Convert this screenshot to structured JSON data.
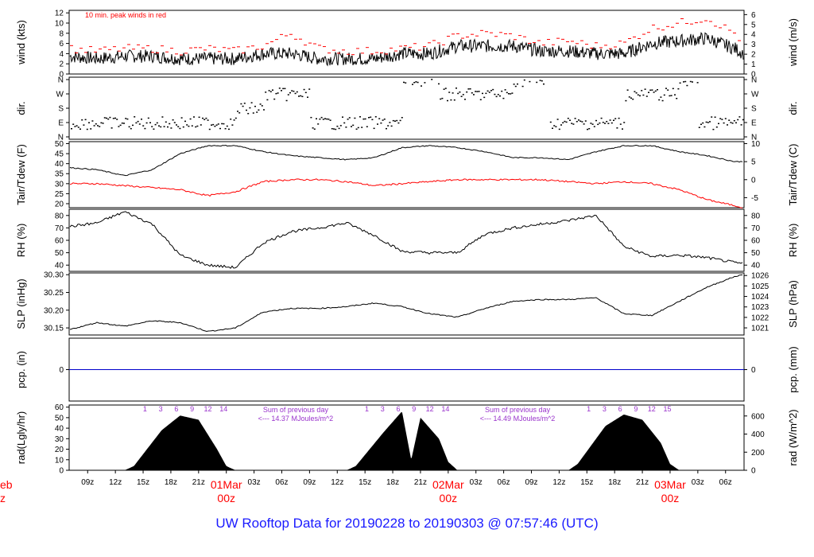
{
  "title": "UW Rooftop Data for 20190228  to  20190303 @ 07:57:46  (UTC)",
  "time_axis": {
    "hours": [
      "09z",
      "12z",
      "15z",
      "18z",
      "21z",
      "03z",
      "06z",
      "09z",
      "12z",
      "15z",
      "18z",
      "21z",
      "03z",
      "06z",
      "09z",
      "12z",
      "15z",
      "18z",
      "21z",
      "03z",
      "06z"
    ],
    "date_labels": [
      {
        "date": "01Mar",
        "hour": "00z"
      },
      {
        "date": "02Mar",
        "hour": "00z"
      },
      {
        "date": "03Mar",
        "hour": "00z"
      }
    ],
    "partial_left": {
      "date": "eb",
      "hour": "z"
    }
  },
  "panels": [
    {
      "id": "wind",
      "ylabel_left": "wind (kts)",
      "ylabel_right": "wind (m/s)",
      "left_ticks": [
        "0",
        "2",
        "4",
        "6",
        "8",
        "10",
        "12"
      ],
      "right_ticks": [
        "0",
        "1",
        "2",
        "3",
        "4",
        "5",
        "6"
      ],
      "note": "10 min. peak winds in red"
    },
    {
      "id": "dir",
      "ylabel_left": "dir.",
      "ylabel_right": "dir.",
      "left_ticks": [
        "N",
        "E",
        "S",
        "W",
        "N"
      ],
      "right_ticks": [
        "N",
        "E",
        "S",
        "W",
        "N"
      ]
    },
    {
      "id": "temp",
      "ylabel_left": "Tair/Tdew (F)",
      "ylabel_right": "Tair/Tdew (C)",
      "left_ticks": [
        "20",
        "25",
        "30",
        "35",
        "40",
        "45",
        "50"
      ],
      "right_ticks": [
        "-5",
        "0",
        "5",
        "10"
      ]
    },
    {
      "id": "rh",
      "ylabel_left": "RH (%)",
      "ylabel_right": "RH (%)",
      "left_ticks": [
        "40",
        "50",
        "60",
        "70",
        "80"
      ],
      "right_ticks": [
        "40",
        "50",
        "60",
        "70",
        "80"
      ]
    },
    {
      "id": "slp",
      "ylabel_left": "SLP (inHg)",
      "ylabel_right": "SLP (hPa)",
      "left_ticks": [
        "30.15",
        "30.20",
        "30.25",
        "30.30"
      ],
      "right_ticks": [
        "1021",
        "1022",
        "1023",
        "1024",
        "1025",
        "1026"
      ]
    },
    {
      "id": "pcp",
      "ylabel_left": "pcp. (in)",
      "ylabel_right": "pcp. (mm)",
      "left_ticks": [
        "0"
      ],
      "right_ticks": [
        "0"
      ]
    },
    {
      "id": "rad",
      "ylabel_left": "rad(Lgly/hr)",
      "ylabel_right": "rad (W/m^2)",
      "left_ticks": [
        "0",
        "10",
        "20",
        "30",
        "40",
        "50",
        "60"
      ],
      "right_ticks": [
        "0",
        "200",
        "400",
        "600"
      ]
    }
  ],
  "rad_annotations": {
    "day_hours": [
      "1",
      "3",
      "6",
      "9",
      "12",
      "14",
      "1",
      "3",
      "6",
      "9",
      "12",
      "14",
      "1",
      "3",
      "6",
      "9",
      "12",
      "15"
    ],
    "sums": [
      {
        "line1": "Sum of previous day",
        "line2": "<--- 14.37 MJoules/m^2"
      },
      {
        "line1": "Sum of previous day",
        "line2": "<--- 14.49 MJoules/m^2"
      }
    ]
  },
  "colors": {
    "trace": "#000000",
    "peak": "#ff0000",
    "dewpoint": "#ff0000",
    "pcp_line": "#0000cc",
    "date_label": "#ff0000",
    "rad_text": "#9933cc",
    "title": "#1a1aff"
  },
  "chart_data": [
    {
      "type": "line",
      "panel": "wind",
      "x_unit": "hours since 2019-02-28 07:00Z",
      "xlim": [
        0,
        73
      ],
      "ylabel": "wind (kts)",
      "ylim": [
        0,
        12.5
      ],
      "series": [
        {
          "x": [
            0,
            3,
            6,
            9,
            12,
            15,
            18,
            21,
            24,
            27,
            30,
            33,
            36,
            39,
            42,
            45,
            48,
            51,
            54,
            57,
            60,
            63,
            66,
            69,
            72,
            73
          ],
          "values": [
            3.5,
            3,
            3.5,
            3.5,
            3,
            3,
            3,
            4,
            4,
            3,
            3,
            3,
            4,
            4,
            5.5,
            5.5,
            5.5,
            4.5,
            4.5,
            4,
            4,
            6,
            6.5,
            7,
            5,
            4
          ]
        },
        {
          "name": "10 min. peak winds in red",
          "x": [
            0,
            3,
            6,
            9,
            12,
            15,
            18,
            21,
            24,
            27,
            30,
            33,
            36,
            39,
            42,
            45,
            48,
            51,
            54,
            57,
            60,
            63,
            66,
            69,
            72,
            73
          ],
          "values": [
            5,
            4.5,
            5,
            5,
            4.5,
            5,
            4.5,
            5.5,
            8,
            5,
            4.5,
            4.5,
            5,
            5.5,
            7.5,
            8,
            7.5,
            6,
            6.5,
            5.5,
            6,
            9,
            10,
            11,
            8,
            6
          ]
        }
      ]
    },
    {
      "type": "scatter",
      "panel": "dir",
      "ylabel": "dir.",
      "y_ticks": [
        "N",
        "E",
        "S",
        "W",
        "N"
      ],
      "series": [
        {
          "x": [
            0,
            4,
            8,
            12,
            16,
            18,
            20,
            21,
            22,
            24,
            26,
            28,
            30,
            32,
            36,
            40,
            42,
            44,
            48,
            52,
            56,
            60,
            62,
            64,
            66,
            68,
            70,
            72
          ],
          "values": [
            "E",
            "E",
            "E",
            "E",
            "E",
            "S",
            "S",
            "W",
            "W",
            "W",
            "E",
            "E",
            "E",
            "E",
            "N",
            "W",
            "W",
            "W",
            "N",
            "E",
            "E",
            "W",
            "W",
            "W",
            "N",
            "E",
            "E",
            "E"
          ]
        }
      ]
    },
    {
      "type": "line",
      "panel": "temp",
      "ylabel": "Tair/Tdew (F)",
      "ylim": [
        18,
        51
      ],
      "series": [
        {
          "x": [
            0,
            3,
            6,
            9,
            12,
            15,
            18,
            21,
            24,
            27,
            30,
            33,
            36,
            39,
            42,
            45,
            48,
            51,
            54,
            57,
            60,
            63,
            66,
            69,
            72,
            73
          ],
          "values": [
            38,
            37,
            34,
            37,
            45,
            49,
            49,
            46,
            44,
            43,
            42,
            43,
            48,
            49,
            48,
            46,
            43,
            43,
            42,
            46,
            49,
            49,
            46,
            44,
            41,
            41
          ]
        },
        {
          "x": [
            0,
            3,
            6,
            9,
            12,
            15,
            18,
            21,
            24,
            27,
            30,
            33,
            36,
            39,
            42,
            45,
            48,
            51,
            54,
            57,
            60,
            63,
            66,
            69,
            72,
            73
          ],
          "values": [
            30,
            30,
            29,
            28,
            27,
            24,
            26,
            31,
            32,
            32,
            31,
            29,
            30,
            31,
            32,
            32,
            32,
            32,
            31,
            30,
            31,
            30,
            27,
            22,
            19,
            18
          ]
        }
      ]
    },
    {
      "type": "line",
      "panel": "rh",
      "ylabel": "RH (%)",
      "ylim": [
        35,
        85
      ],
      "series": [
        {
          "x": [
            0,
            3,
            6,
            9,
            12,
            15,
            18,
            21,
            24,
            27,
            30,
            33,
            36,
            39,
            42,
            45,
            48,
            51,
            54,
            57,
            60,
            63,
            66,
            69,
            72,
            73
          ],
          "values": [
            71,
            74,
            83,
            73,
            48,
            40,
            38,
            58,
            67,
            70,
            74,
            64,
            51,
            50,
            50,
            65,
            70,
            73,
            76,
            80,
            55,
            47,
            48,
            46,
            42,
            41
          ]
        }
      ]
    },
    {
      "type": "line",
      "panel": "slp",
      "ylabel": "SLP (inHg)",
      "ylim": [
        30.13,
        30.305
      ],
      "series": [
        {
          "x": [
            0,
            3,
            6,
            9,
            12,
            15,
            18,
            21,
            24,
            27,
            30,
            33,
            36,
            39,
            42,
            45,
            48,
            51,
            54,
            57,
            60,
            63,
            66,
            69,
            72,
            73
          ],
          "values": [
            30.145,
            30.165,
            30.155,
            30.17,
            30.165,
            30.14,
            30.15,
            30.195,
            30.205,
            30.205,
            30.21,
            30.22,
            30.21,
            30.19,
            30.18,
            30.205,
            30.225,
            30.23,
            30.23,
            30.235,
            30.19,
            30.185,
            30.225,
            30.265,
            30.295,
            30.3
          ]
        }
      ]
    },
    {
      "type": "line",
      "panel": "pcp",
      "ylabel": "pcp. (in)",
      "ylim": [
        -0.2,
        0.2
      ],
      "series": [
        {
          "x": [
            0,
            73
          ],
          "values": [
            0,
            0
          ]
        }
      ]
    },
    {
      "type": "area",
      "panel": "rad",
      "ylabel": "rad(Lgly/hr)",
      "ylim": [
        0,
        62
      ],
      "series": [
        {
          "x": [
            0,
            6,
            7,
            10,
            12,
            14,
            16,
            17,
            18,
            24,
            30,
            31,
            34,
            36,
            37,
            38,
            40,
            41,
            42,
            48,
            54,
            55,
            58,
            60,
            62,
            64,
            65,
            66,
            72,
            73
          ],
          "values": [
            0,
            0,
            4,
            38,
            52,
            48,
            20,
            4,
            0,
            0,
            0,
            4,
            36,
            56,
            10,
            50,
            30,
            8,
            0,
            0,
            0,
            6,
            42,
            53,
            48,
            26,
            6,
            0,
            0,
            0
          ]
        }
      ]
    }
  ]
}
